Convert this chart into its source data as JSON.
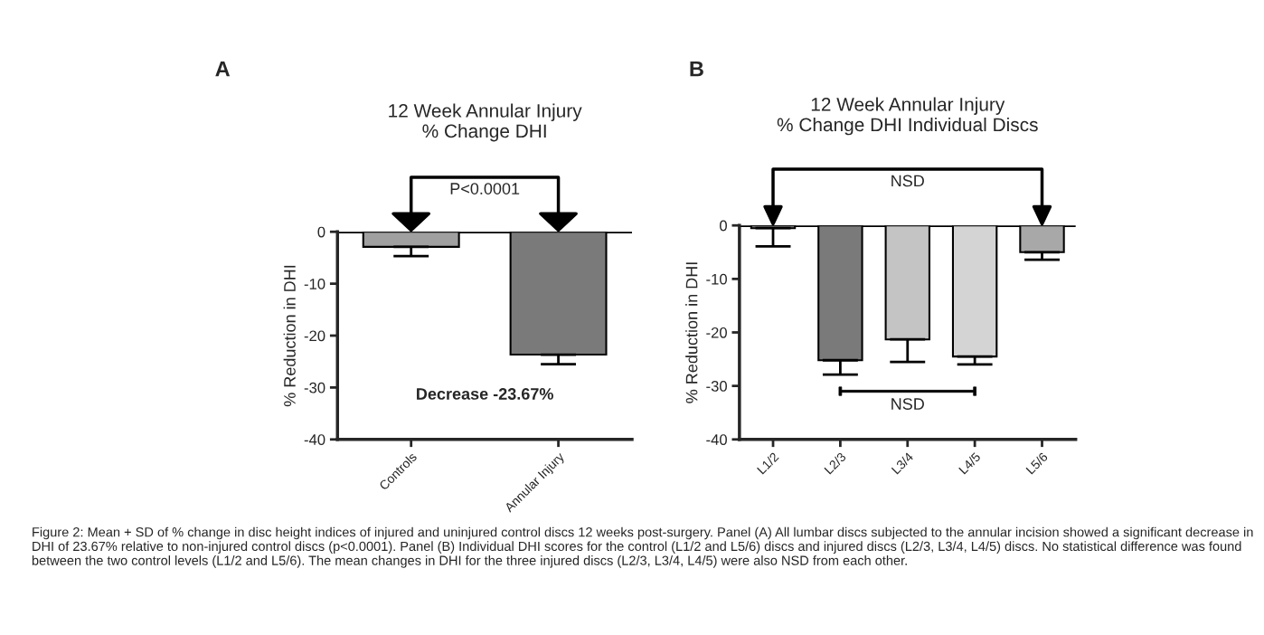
{
  "chart_data": [
    {
      "type": "bar",
      "title": "12 Week Annular Injury\n% Change DHI",
      "ylabel": "% Reduction in DHI",
      "categories": [
        "Controls",
        "Annular Injury"
      ],
      "values": [
        -2.9,
        -23.67
      ],
      "colors": [
        "#a0a0a0",
        "#7a7a7a"
      ],
      "errors": [
        [
          -4.7,
          -2.9
        ],
        [
          -25.5,
          -23.67
        ]
      ],
      "ylim": [
        -40,
        0
      ],
      "yticks": [
        -40,
        -30,
        -20,
        -10,
        0
      ],
      "grid": false,
      "legend": false,
      "annotations": [
        "A",
        "P<0.0001",
        "Decrease -23.67%",
        "Figure 2: Mean + SD of % change in disc height indices of injured and uninjured control discs 12 weeks post-surgery. Panel (A) All lumbar discs subjected to the annular incision showed a significant decrease in DHI of 23.67% relative to non-injured control discs (p<0.0001). Panel (B) Individual DHI scores for the control (L1/2 and L5/6) discs and injured discs (L2/3, L3/4, L4/5) discs. No statistical difference was found between the two control levels (L1/2 and L5/6). The mean changes in DHI for the three injured discs (L2/3, L3/4, L4/5) were also NSD from each other."
      ]
    },
    {
      "type": "bar",
      "title": "12 Week Annular Injury\n% Change DHI Individual Discs",
      "ylabel": "% Reduction in DHI",
      "categories": [
        "L1/2",
        "L2/3",
        "L3/4",
        "L4/5",
        "L5/6"
      ],
      "values": [
        -0.5,
        -25.2,
        -21.3,
        -24.5,
        -5.0
      ],
      "colors": [
        "#999999",
        "#7a7a7a",
        "#c4c4c4",
        "#d4d4d4",
        "#a8a8a8"
      ],
      "errors": [
        [
          -3.9,
          -0.5
        ],
        [
          -27.9,
          -25.2
        ],
        [
          -25.5,
          -21.3
        ],
        [
          -26.0,
          -24.5
        ],
        [
          -6.4,
          -5.0
        ]
      ],
      "ylim": [
        -40,
        0
      ],
      "yticks": [
        -40,
        -30,
        -20,
        -10,
        0
      ],
      "grid": false,
      "legend": false,
      "annotations": [
        "B",
        "NSD",
        "NSD"
      ]
    }
  ]
}
